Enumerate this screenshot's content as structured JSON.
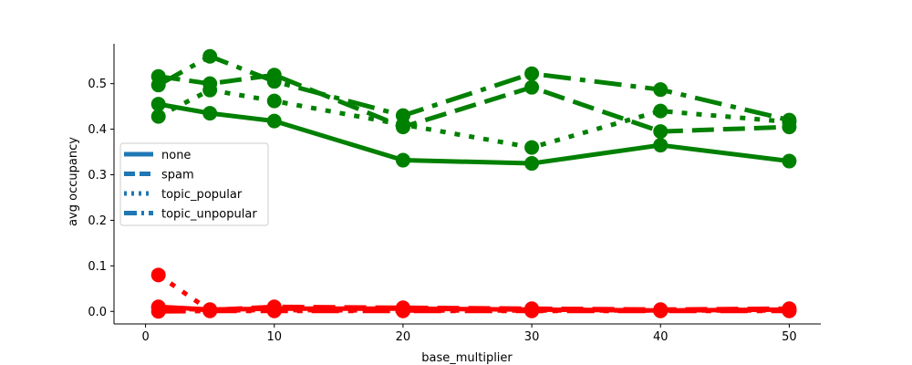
{
  "chart_data": {
    "type": "line",
    "xlabel": "base_multiplier",
    "ylabel": "avg occupancy",
    "xlim": [
      -2.45,
      52.45
    ],
    "ylim": [
      -0.0275,
      0.5875
    ],
    "xticks": [
      0,
      10,
      20,
      30,
      40,
      50
    ],
    "yticks": [
      0.0,
      0.1,
      0.2,
      0.3,
      0.4,
      0.5
    ],
    "x": [
      1,
      5,
      10,
      20,
      30,
      40,
      50
    ],
    "legend_position": "center-left",
    "legend": [
      {
        "label": "none",
        "style": "solid"
      },
      {
        "label": "spam",
        "style": "dashed"
      },
      {
        "label": "topic_popular",
        "style": "dotted"
      },
      {
        "label": "topic_unpopular",
        "style": "dashdot"
      }
    ],
    "legend_color": "#1f77b4",
    "colors": {
      "green": "#008000",
      "red": "#ff0000"
    },
    "series": [
      {
        "style": "solid",
        "color": "green",
        "values": [
          0.455,
          0.435,
          0.418,
          0.332,
          0.325,
          0.365,
          0.33
        ]
      },
      {
        "style": "dashed",
        "color": "green",
        "values": [
          0.516,
          0.5,
          0.519,
          0.405,
          0.492,
          0.395,
          0.405
        ]
      },
      {
        "style": "dotted",
        "color": "green",
        "values": [
          0.428,
          0.486,
          0.462,
          0.41,
          0.36,
          0.44,
          0.416
        ]
      },
      {
        "style": "dashdot",
        "color": "green",
        "values": [
          0.497,
          0.56,
          0.505,
          0.43,
          0.522,
          0.487,
          0.42
        ]
      },
      {
        "style": "solid",
        "color": "red",
        "values": [
          0.01,
          0.004,
          0.006,
          0.006,
          0.004,
          0.002,
          0.004
        ]
      },
      {
        "style": "dashed",
        "color": "red",
        "values": [
          0.008,
          0.003,
          0.01,
          0.008,
          0.006,
          0.004,
          0.006
        ]
      },
      {
        "style": "dotted",
        "color": "red",
        "values": [
          0.08,
          0.002,
          0.003,
          0.002,
          0.002,
          0.002,
          0.002
        ]
      },
      {
        "style": "dashdot",
        "color": "red",
        "values": [
          0.0,
          0.001,
          0.001,
          0.001,
          0.001,
          0.001,
          0.001
        ]
      }
    ]
  }
}
